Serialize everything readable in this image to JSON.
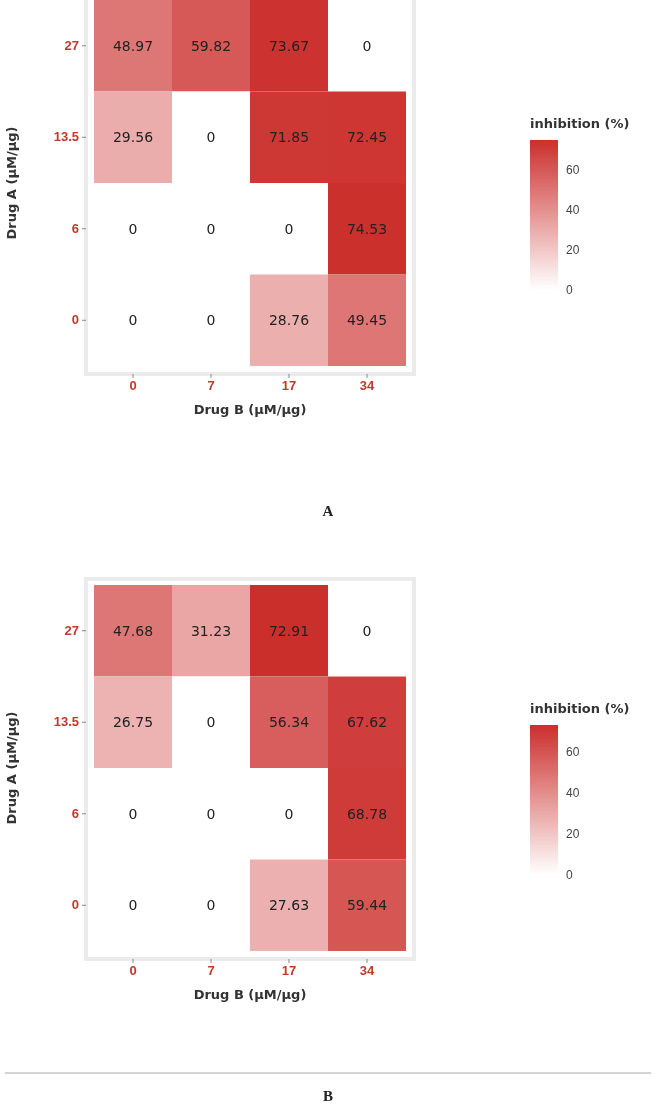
{
  "chart_data": [
    {
      "type": "heatmap",
      "xlabel": "Drug B (μM/μg)",
      "ylabel": "Drug A (μM/μg)",
      "clabel": "inhibition (%)",
      "categories": [
        "0",
        "7",
        "17",
        "34"
      ],
      "y_categories": [
        "27",
        "13.5",
        "6",
        "0"
      ],
      "cells": [
        [
          48.97,
          59.82,
          73.67,
          0
        ],
        [
          29.56,
          0,
          71.85,
          72.45
        ],
        [
          0,
          0,
          0,
          74.53
        ],
        [
          0,
          0,
          28.76,
          49.45
        ]
      ],
      "clim": [
        0,
        75
      ],
      "cticks": [
        0,
        20,
        40,
        60
      ],
      "colors": [
        "#ffffff",
        "#cb2f2c"
      ],
      "data_labels": true,
      "annotations": [
        "A"
      ]
    },
    {
      "type": "heatmap",
      "xlabel": "Drug B (μM/μg)",
      "ylabel": "Drug A (μM/μg)",
      "clabel": "inhibition (%)",
      "categories": [
        "0",
        "7",
        "17",
        "34"
      ],
      "y_categories": [
        "27",
        "13.5",
        "6",
        "0"
      ],
      "cells": [
        [
          47.68,
          31.23,
          72.91,
          0
        ],
        [
          26.75,
          0,
          56.34,
          67.62
        ],
        [
          0,
          0,
          0,
          68.78
        ],
        [
          0,
          0,
          27.63,
          59.44
        ]
      ],
      "clim": [
        0,
        73
      ],
      "cticks": [
        0,
        20,
        40,
        60
      ],
      "colors": [
        "#ffffff",
        "#cb2f2c"
      ],
      "data_labels": true,
      "annotations": [
        "B"
      ]
    }
  ]
}
